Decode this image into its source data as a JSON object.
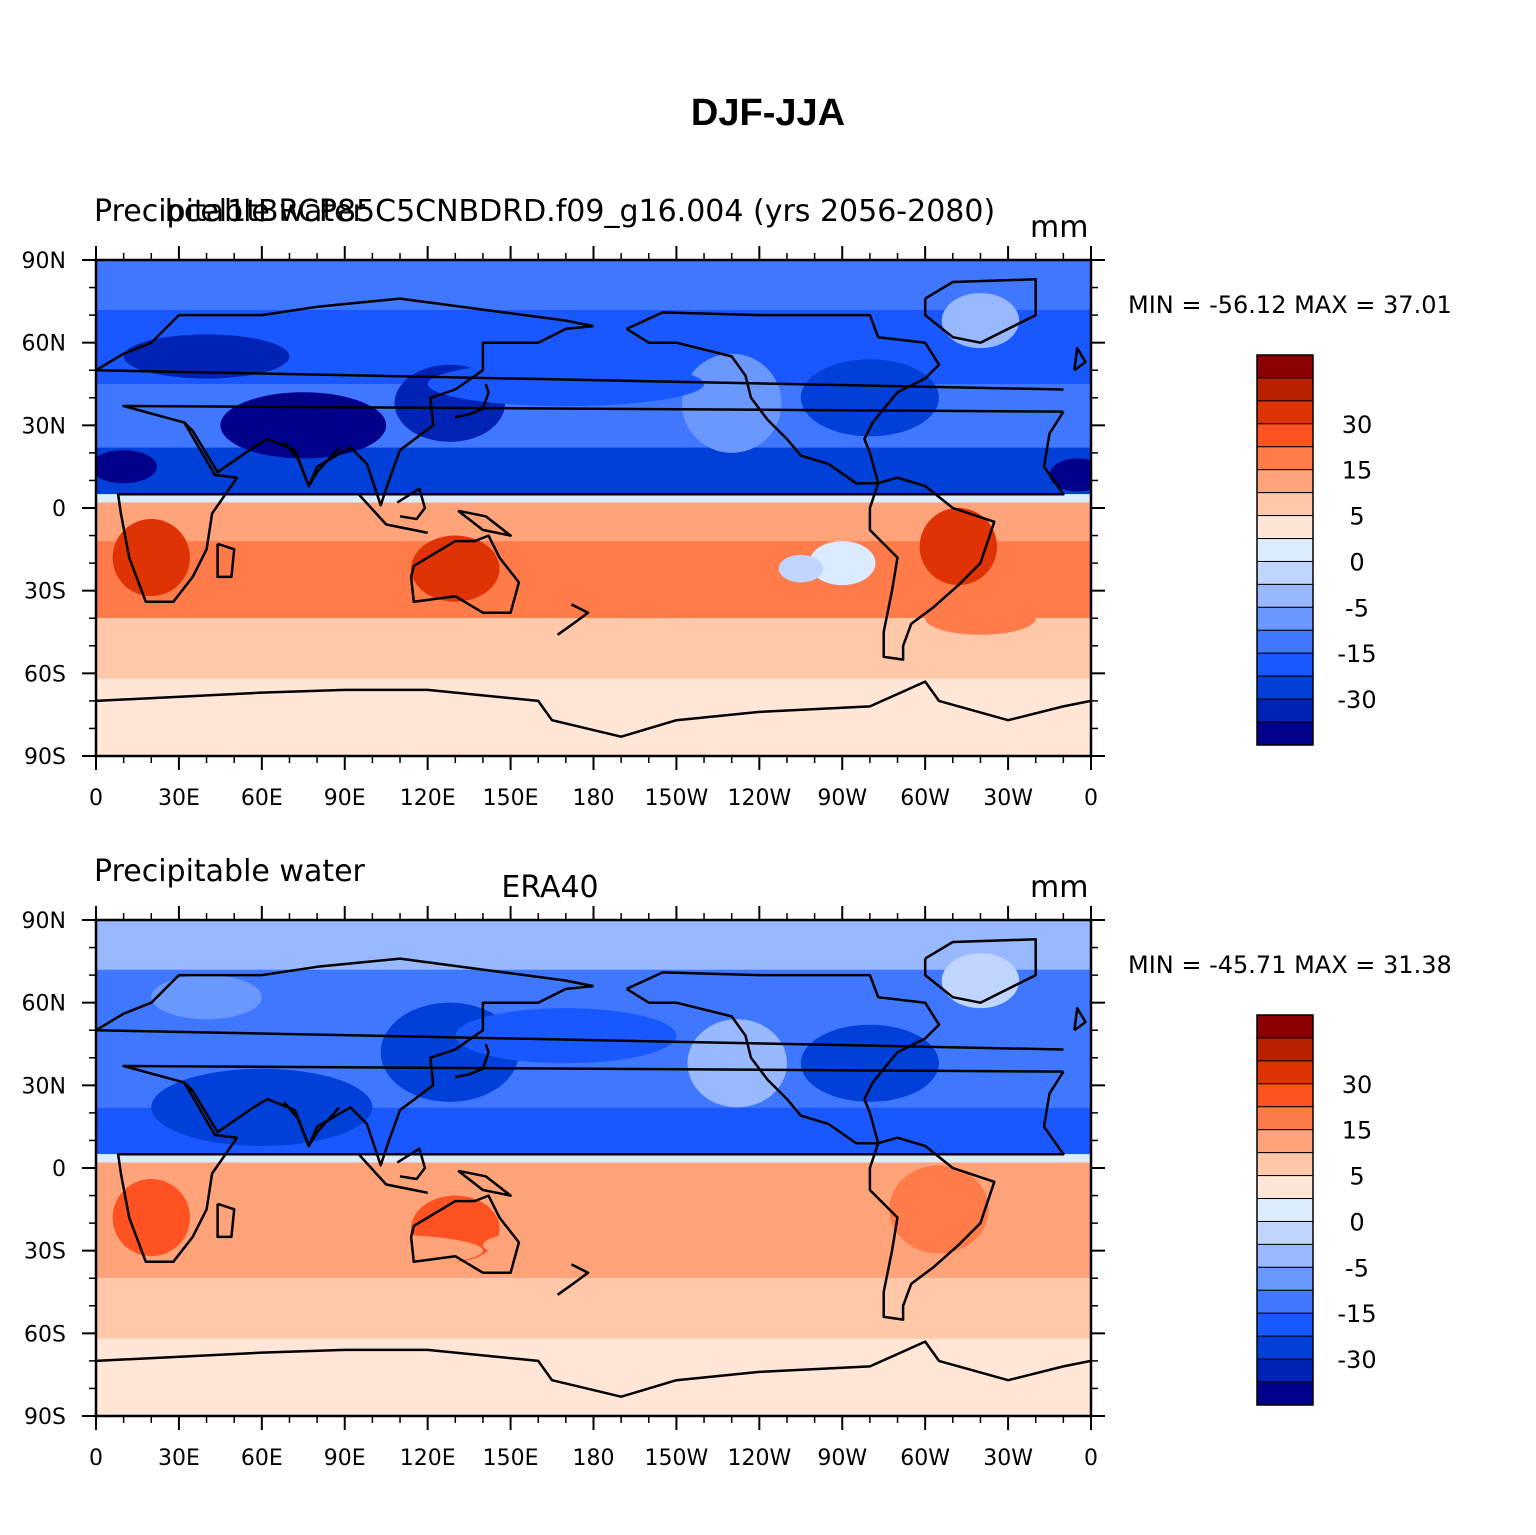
{
  "title": "DJF-JJA",
  "panels": [
    {
      "left_label": "Precipitable water",
      "center_label": "bcel1tBRCP85C5CNBDRD.f09_g16.004 (yrs 2056-2080)",
      "units": "mm",
      "min_max": "MIN = -56.12 MAX =  37.01",
      "pattern": "model"
    },
    {
      "left_label": "Precipitable water",
      "center_label": "ERA40",
      "units": "mm",
      "min_max": "MIN = -45.71 MAX =  31.38",
      "pattern": "obs"
    }
  ],
  "lat_ticks": [
    "90N",
    "60N",
    "30N",
    "0",
    "30S",
    "60S",
    "90S"
  ],
  "lon_ticks": [
    "0",
    "30E",
    "60E",
    "90E",
    "120E",
    "150E",
    "180",
    "150W",
    "120W",
    "90W",
    "60W",
    "30W",
    "0"
  ],
  "colorbar": {
    "colors": [
      "#00008b",
      "#0022b5",
      "#0040d8",
      "#1a58ff",
      "#3f78ff",
      "#6b98ff",
      "#98b8ff",
      "#c0d5ff",
      "#dcebff",
      "#ffe6d6",
      "#ffc8a8",
      "#ffa37a",
      "#ff7b4a",
      "#ff5223",
      "#e03305",
      "#b82000",
      "#8b0000"
    ],
    "labels": [
      "-30",
      "-15",
      "-5",
      "0",
      "5",
      "15",
      "30"
    ]
  }
}
